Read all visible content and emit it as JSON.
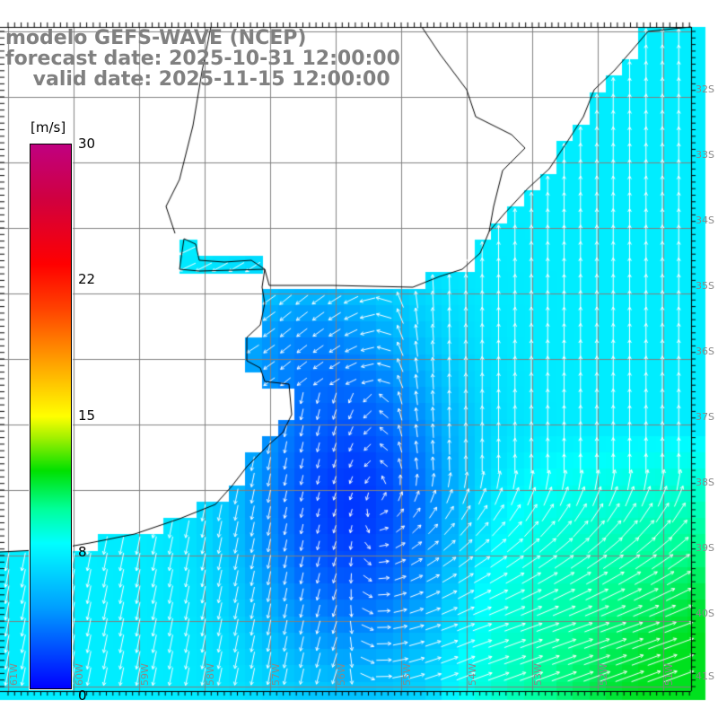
{
  "title": {
    "model": "modelo GEFS-WAVE (NCEP)",
    "forecast": "forecast date: 2025-10-31 12:00:00",
    "valid": "    valid date: 2025-11-15 12:00:00"
  },
  "colorbar": {
    "unit": "[m/s]",
    "ticks": [
      "30",
      "22",
      "15",
      "8",
      "0"
    ]
  },
  "lat_labels": [
    "32S",
    "33S",
    "34S",
    "35S",
    "36S",
    "37S",
    "38S",
    "39S",
    "40S",
    "41S"
  ],
  "lon_labels": [
    "61W",
    "60W",
    "59W",
    "58W",
    "57W",
    "56W",
    "55W",
    "54W",
    "53W",
    "52W",
    "51W"
  ],
  "colors": {
    "land": "#ffffff",
    "grid": "#808080",
    "coast": "#000000",
    "arrow": "#ffffff"
  }
}
